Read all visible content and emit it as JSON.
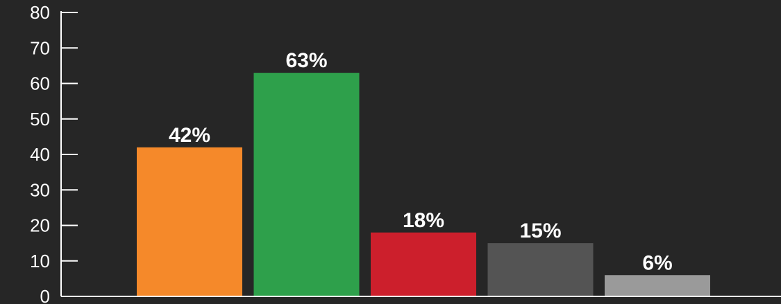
{
  "chart_data": {
    "type": "bar",
    "title": "",
    "xlabel": "",
    "ylabel": "",
    "ylim": [
      0,
      80
    ],
    "yticks": [
      0,
      10,
      20,
      30,
      40,
      50,
      60,
      70,
      80
    ],
    "grid": false,
    "legend": "none",
    "values": [
      42,
      63,
      18,
      15,
      6
    ],
    "data_labels": [
      "42%",
      "63%",
      "18%",
      "15%",
      "6%"
    ],
    "colors": [
      "#F5892A",
      "#2EA04B",
      "#CC1F2C",
      "#545454",
      "#9A9A9A"
    ]
  },
  "theme": {
    "background": "#262626",
    "axis_color": "#ffffff",
    "text_color": "#ffffff"
  }
}
